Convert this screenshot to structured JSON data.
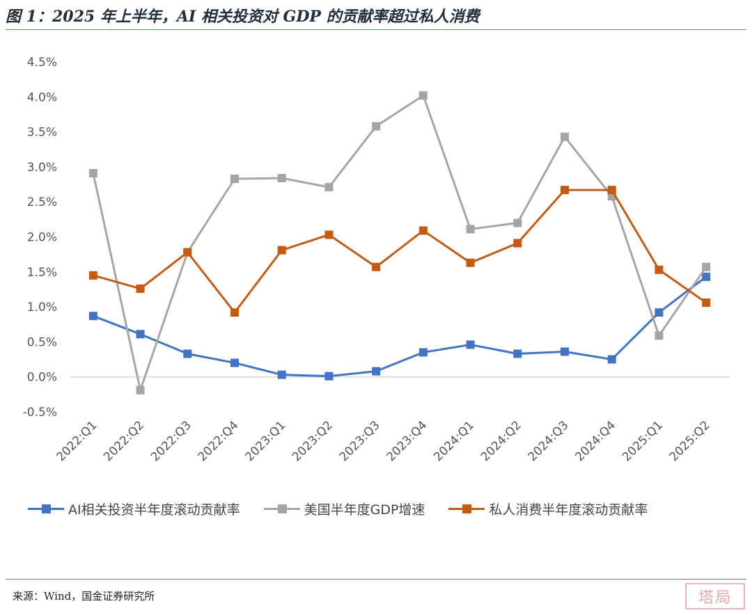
{
  "title": "图 1：2025 年上半年，AI 相关投资对 GDP 的贡献率超过私人消费",
  "source": "来源：Wind，国金证券研究所",
  "stamp": "塔局",
  "chart_data": {
    "type": "line",
    "categories": [
      "2022:Q1",
      "2022:Q2",
      "2022:Q3",
      "2022:Q4",
      "2023:Q1",
      "2023:Q2",
      "2023:Q3",
      "2023:Q4",
      "2024:Q1",
      "2024:Q2",
      "2024:Q3",
      "2024:Q4",
      "2025:Q1",
      "2025:Q2"
    ],
    "ylim": [
      -0.5,
      4.5
    ],
    "yticks": [
      "4.5%",
      "4.0%",
      "3.5%",
      "3.0%",
      "2.5%",
      "2.0%",
      "1.5%",
      "1.0%",
      "0.5%",
      "0.0%",
      "-0.5%"
    ],
    "ytick_values": [
      4.5,
      4.0,
      3.5,
      3.0,
      2.5,
      2.0,
      1.5,
      1.0,
      0.5,
      0.0,
      -0.5
    ],
    "series": [
      {
        "name": "AI相关投资半年度滚动贡献率",
        "color": "#4472c4",
        "values": [
          0.87,
          0.61,
          0.33,
          0.2,
          0.03,
          0.01,
          0.08,
          0.35,
          0.46,
          0.33,
          0.36,
          0.25,
          0.92,
          1.43
        ]
      },
      {
        "name": "美国半年度GDP增速",
        "color": "#a5a5a5",
        "values": [
          2.91,
          -0.19,
          1.78,
          2.83,
          2.84,
          2.71,
          3.58,
          4.02,
          2.11,
          2.2,
          3.43,
          2.58,
          0.59,
          1.57
        ]
      },
      {
        "name": "私人消费半年度滚动贡献率",
        "color": "#c55a11",
        "values": [
          1.45,
          1.26,
          1.78,
          0.92,
          1.81,
          2.03,
          1.57,
          2.09,
          1.63,
          1.91,
          2.67,
          2.67,
          1.53,
          1.06
        ]
      }
    ],
    "legend_position": "bottom",
    "grid": false
  }
}
